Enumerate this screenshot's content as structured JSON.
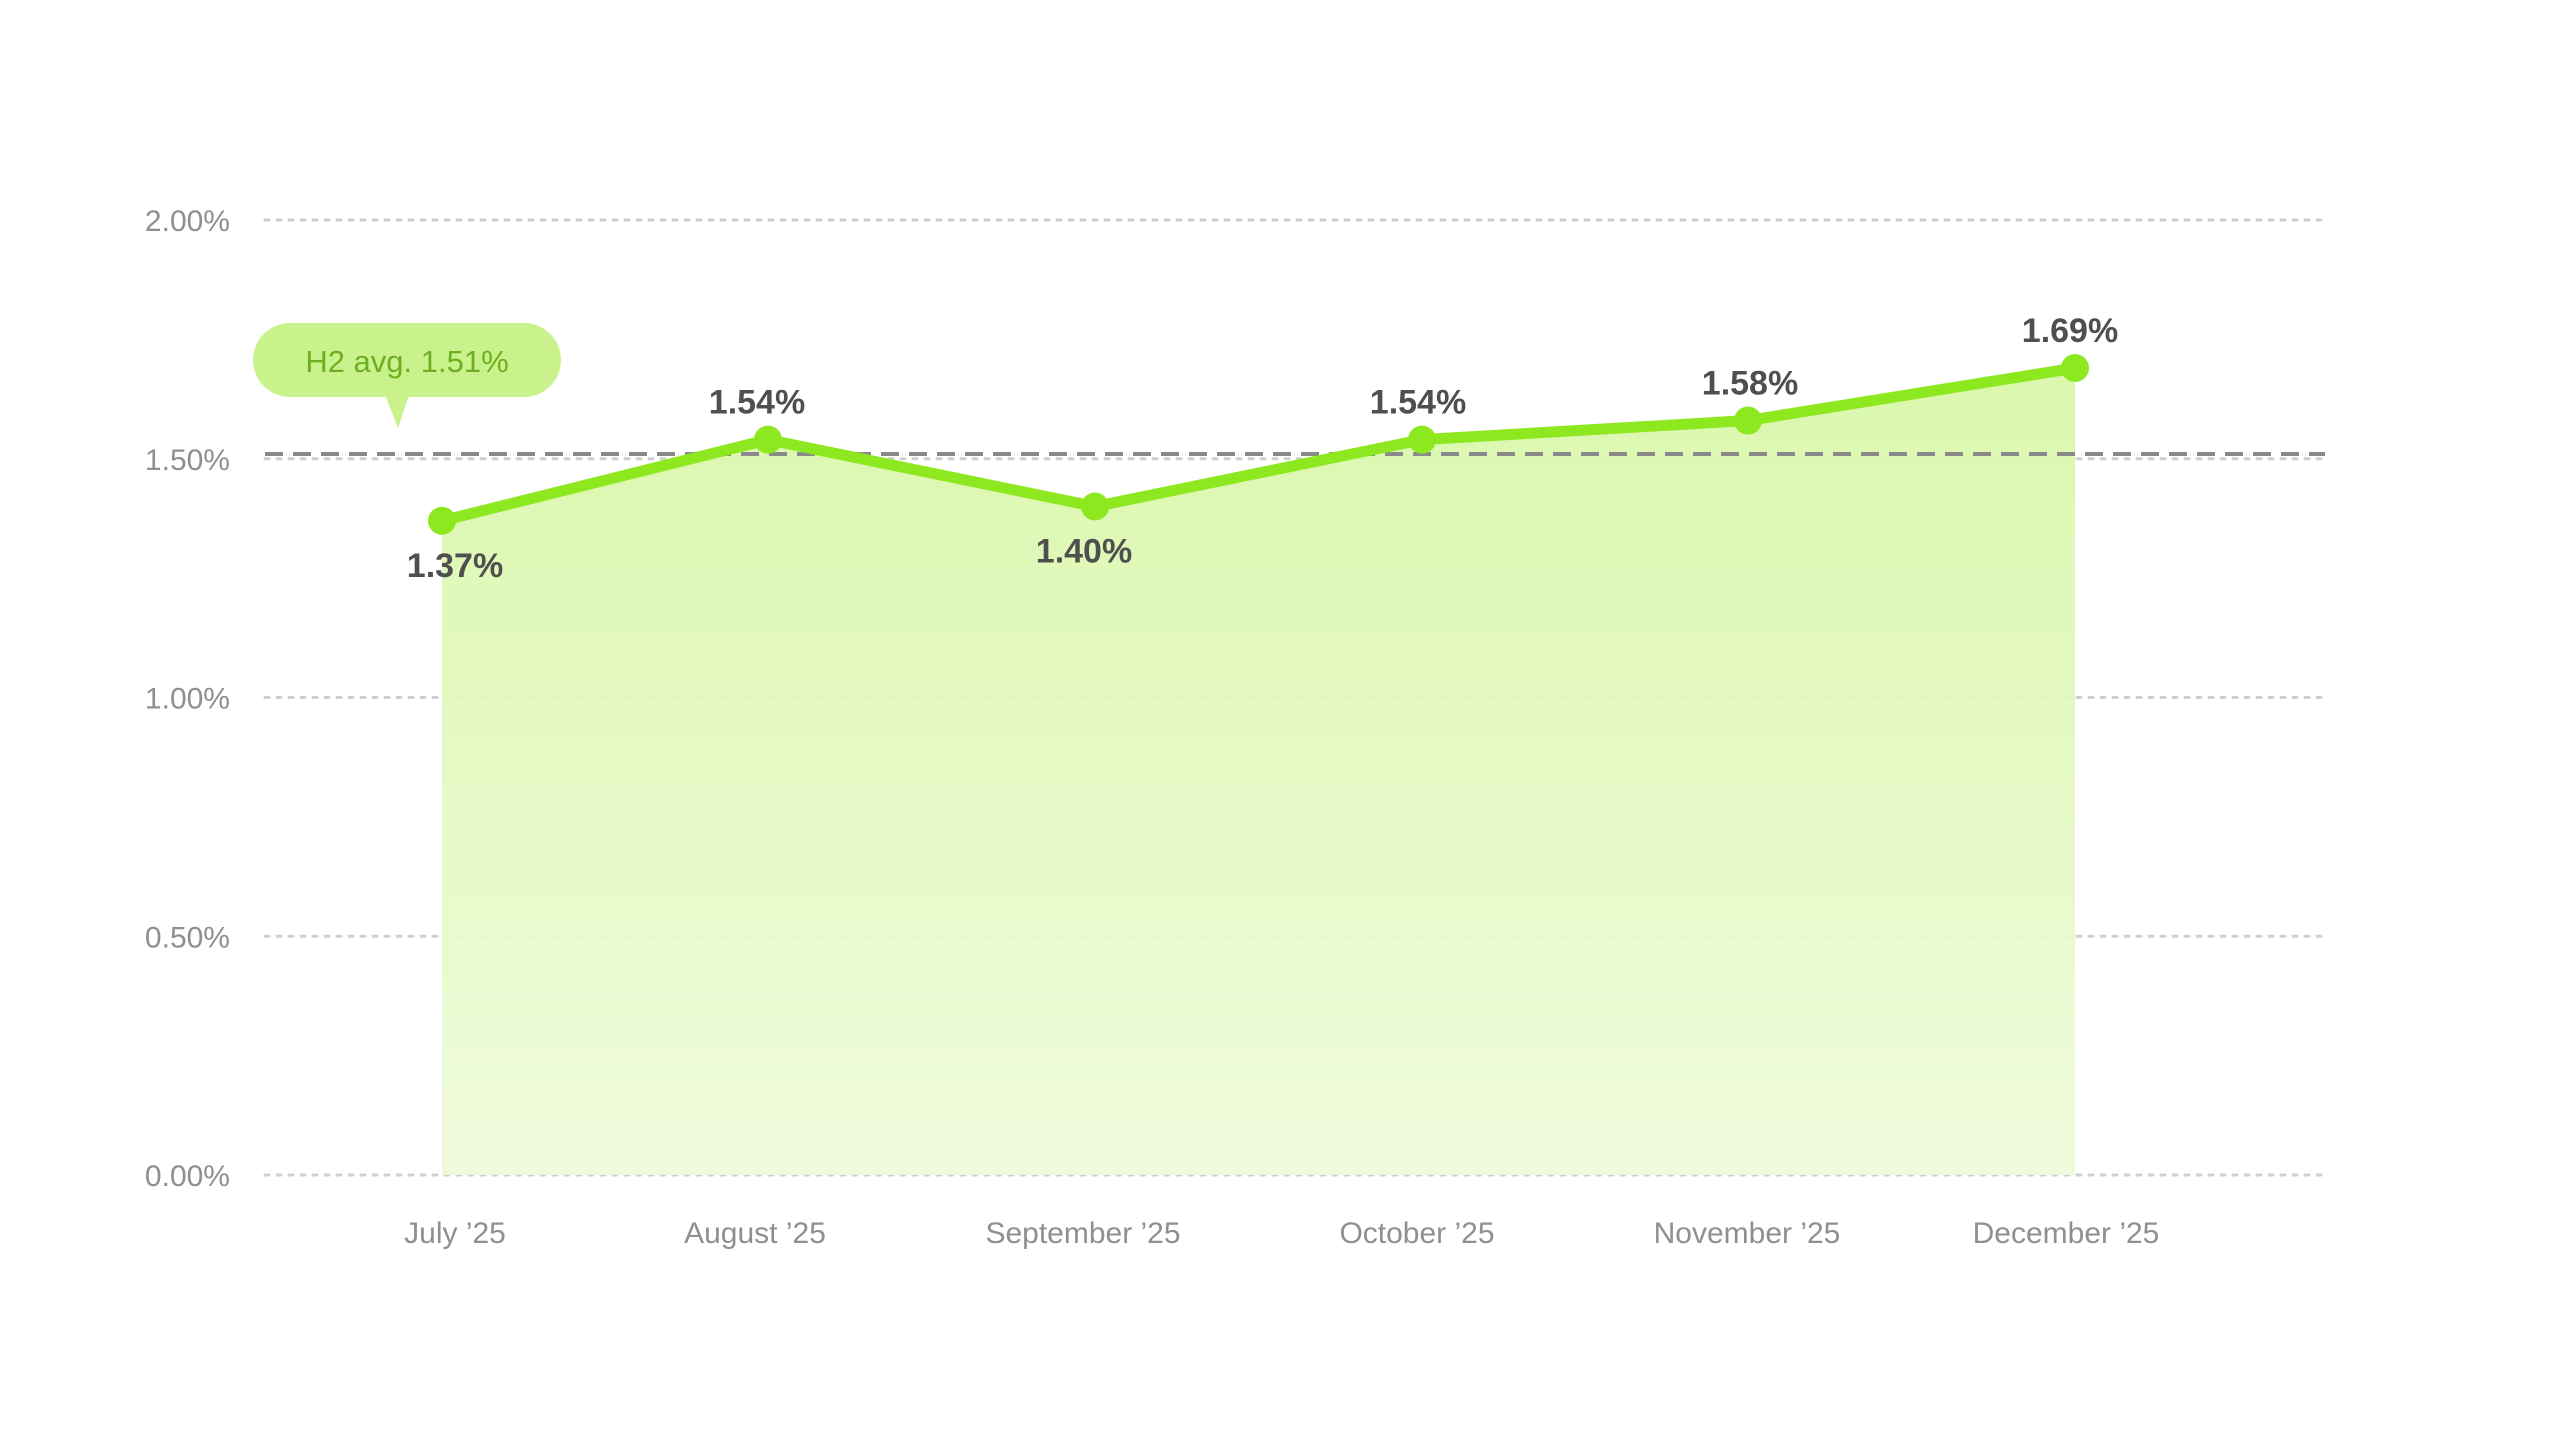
{
  "chart_data": {
    "type": "area",
    "categories": [
      "July ’25",
      "August ’25",
      "September ’25",
      "October ’25",
      "November ’25",
      "December ’25"
    ],
    "series": [
      {
        "values": [
          1.37,
          1.54,
          1.4,
          1.54,
          1.58,
          1.69
        ],
        "data_labels": [
          "1.37%",
          "1.54%",
          "1.40%",
          "1.54%",
          "1.58%",
          "1.69%"
        ]
      }
    ],
    "yticks": [
      0,
      0.5,
      1.0,
      1.5,
      2.0
    ],
    "ytick_labels": [
      "0.00%",
      "0.50%",
      "1.00%",
      "1.50%",
      "2.00%"
    ],
    "ylim": [
      0,
      2.0
    ],
    "grid": true,
    "reference_line": {
      "value": 1.51,
      "label": "H2 avg. 1.51%"
    },
    "colors": {
      "line": "#8ee81f",
      "area": "#d9f8a6",
      "reference_line": "#8a8a8a",
      "grid": "#cfcfcf",
      "callout": "#c9f28c"
    }
  }
}
